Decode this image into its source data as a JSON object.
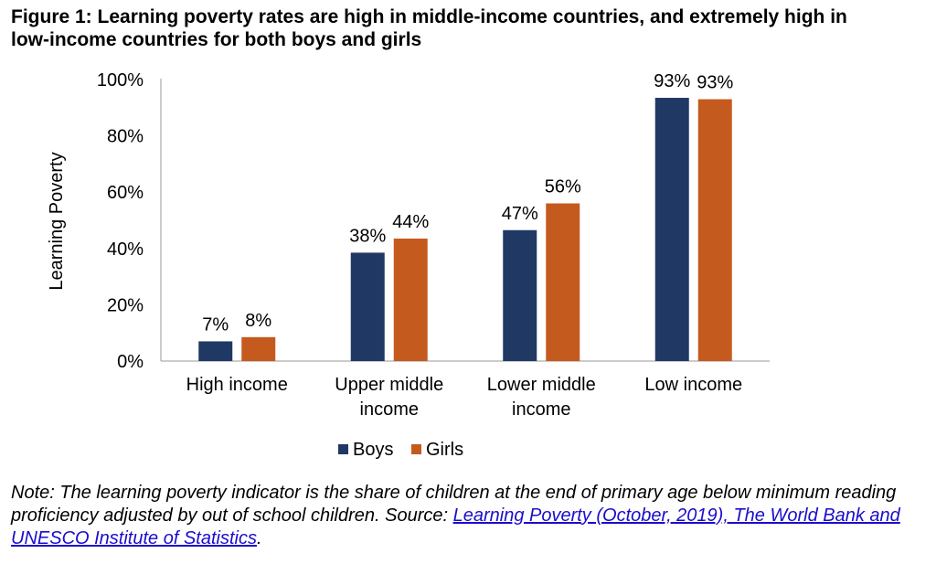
{
  "title_line1": "Figure 1: Learning poverty rates are high in middle-income countries, and extremely high in",
  "title_line2": "low-income countries for both boys and girls",
  "note": {
    "prefix": "Note: The learning poverty indicator is the share of children at the end of primary age below minimum reading proficiency adjusted by out of school children. Source: ",
    "link_text": "Learning Poverty (October, 2019), The World Bank and UNESCO Institute of Statistics",
    "suffix": "."
  },
  "colors": {
    "boys": "#203864",
    "girls": "#c55a1f",
    "axis": "#999999"
  },
  "chart_data": {
    "type": "bar",
    "ylabel": "Learning Poverty",
    "ylim": [
      0,
      100
    ],
    "yticks": [
      "0%",
      "20%",
      "40%",
      "60%",
      "80%",
      "100%"
    ],
    "categories": [
      [
        "High income"
      ],
      [
        "Upper middle",
        "income"
      ],
      [
        "Lower middle",
        "income"
      ],
      [
        "Low income"
      ]
    ],
    "series": [
      {
        "name": "Boys",
        "values": [
          7,
          38.5,
          46.5,
          93.5
        ],
        "labels": [
          "7%",
          "38%",
          "47%",
          "93%"
        ]
      },
      {
        "name": "Girls",
        "values": [
          8.5,
          43.5,
          56,
          93
        ],
        "labels": [
          "8%",
          "44%",
          "56%",
          "93%"
        ]
      }
    ],
    "legend_position": "bottom",
    "grid": false
  }
}
